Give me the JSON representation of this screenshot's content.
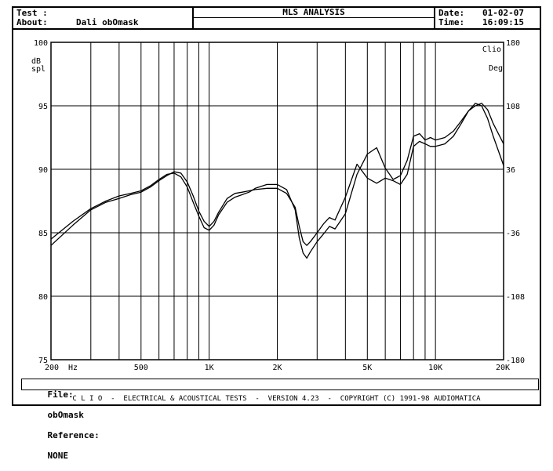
{
  "header": {
    "test_label": "Test :",
    "about_label": "About:",
    "about_value": "Dali obOmask",
    "title": "MLS ANALYSIS",
    "date_label": "Date:",
    "date_value": "01-02-07",
    "time_label": "Time:",
    "time_value": "16:09:15"
  },
  "file_bar": {
    "file_label": "File:",
    "file_value": "obOmask",
    "reference_label": "Reference:",
    "reference_value": "NONE"
  },
  "footer": {
    "text": "C L I O  -  ELECTRICAL & ACOUSTICAL TESTS  -  VERSION 4.23  -  COPYRIGHT (C) 1991-98 AUDIOMATICA"
  },
  "chart_data": {
    "type": "line",
    "title": "MLS ANALYSIS",
    "x_scale": "log",
    "xlim": [
      200,
      20000
    ],
    "ylim": [
      75,
      100
    ],
    "y2lim": [
      -180,
      180
    ],
    "ylabel": "dB spl",
    "y2label": "Deg",
    "x_unit_label": "Hz",
    "corner_label": "Clio",
    "grid": true,
    "x_tick_labels": [
      {
        "value": 200,
        "label": "200"
      },
      {
        "value": 500,
        "label": "500"
      },
      {
        "value": 1000,
        "label": "1K"
      },
      {
        "value": 2000,
        "label": "2K"
      },
      {
        "value": 5000,
        "label": "5K"
      },
      {
        "value": 10000,
        "label": "10K"
      },
      {
        "value": 20000,
        "label": "20K"
      }
    ],
    "x_grid": [
      200,
      300,
      400,
      500,
      600,
      700,
      800,
      900,
      1000,
      2000,
      3000,
      4000,
      5000,
      6000,
      7000,
      8000,
      9000,
      10000,
      20000
    ],
    "y_ticks": [
      75,
      80,
      85,
      90,
      95,
      100
    ],
    "y2_ticks": [
      -180,
      -108,
      -36,
      36,
      108,
      180
    ],
    "series": [
      {
        "x": [
          200,
          250,
          300,
          350,
          400,
          450,
          500,
          550,
          600,
          650,
          700,
          750,
          800,
          850,
          900,
          950,
          1000,
          1050,
          1100,
          1200,
          1300,
          1400,
          1500,
          1600,
          1800,
          2000,
          2200,
          2400,
          2500,
          2600,
          2700,
          2800,
          3000,
          3200,
          3400,
          3600,
          4000,
          4500,
          5000,
          5500,
          6000,
          6500,
          7000,
          7500,
          8000,
          8500,
          9000,
          9500,
          10000,
          11000,
          12000,
          13000,
          14000,
          15000,
          16000,
          17000,
          18000,
          20000
        ],
        "values": [
          84.5,
          85.9,
          86.9,
          87.5,
          87.9,
          88.1,
          88.3,
          88.7,
          89.2,
          89.6,
          89.7,
          89.4,
          88.6,
          87.4,
          86.3,
          85.4,
          85.2,
          85.6,
          86.4,
          87.4,
          87.8,
          88.0,
          88.2,
          88.5,
          88.8,
          88.8,
          88.4,
          86.8,
          84.6,
          83.4,
          83.0,
          83.5,
          84.3,
          84.9,
          85.5,
          85.3,
          86.5,
          89.6,
          91.2,
          91.7,
          90.1,
          89.2,
          89.5,
          90.7,
          92.6,
          92.8,
          92.3,
          92.5,
          92.3,
          92.5,
          93.0,
          93.8,
          94.6,
          95.0,
          95.2,
          94.7,
          93.6,
          92.0
        ]
      },
      {
        "x": [
          200,
          250,
          300,
          350,
          400,
          450,
          500,
          550,
          600,
          650,
          700,
          750,
          800,
          850,
          900,
          950,
          1000,
          1050,
          1100,
          1200,
          1300,
          1400,
          1500,
          1600,
          1800,
          2000,
          2200,
          2400,
          2500,
          2600,
          2700,
          2800,
          3000,
          3200,
          3400,
          3600,
          4000,
          4500,
          5000,
          5500,
          6000,
          6500,
          7000,
          7500,
          8000,
          8500,
          9000,
          9500,
          10000,
          11000,
          12000,
          13000,
          14000,
          15000,
          16000,
          17000,
          18000,
          20000
        ],
        "values": [
          84.0,
          85.6,
          86.8,
          87.4,
          87.7,
          88.0,
          88.2,
          88.6,
          89.1,
          89.5,
          89.8,
          89.7,
          89.0,
          87.9,
          86.7,
          85.9,
          85.5,
          85.9,
          86.6,
          87.7,
          88.1,
          88.2,
          88.3,
          88.4,
          88.5,
          88.5,
          88.1,
          87.0,
          85.5,
          84.3,
          84.0,
          84.3,
          85.0,
          85.7,
          86.2,
          86.0,
          87.8,
          90.4,
          89.3,
          88.9,
          89.3,
          89.1,
          88.8,
          89.6,
          91.8,
          92.2,
          92.0,
          91.8,
          91.8,
          92.0,
          92.6,
          93.6,
          94.6,
          95.2,
          95.0,
          94.0,
          92.6,
          90.3
        ]
      }
    ]
  }
}
